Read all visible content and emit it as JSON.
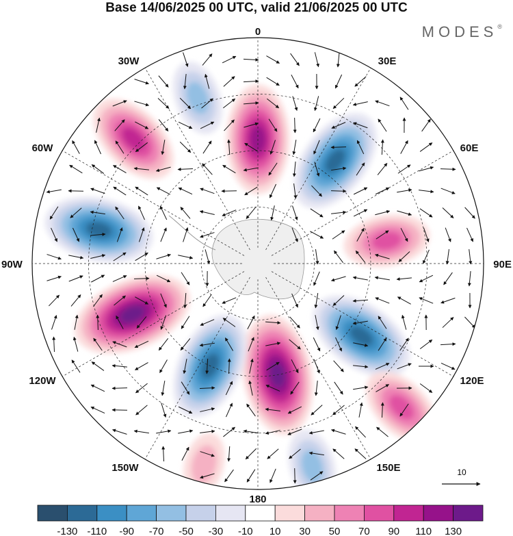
{
  "title": "Base 14/06/2025 00 UTC, valid 21/06/2025 00 UTC",
  "brand": "MODES",
  "brand_mark": "®",
  "map": {
    "projection": "south-polar-stereographic",
    "longitude_labels": {
      "top": "0",
      "bottom": "180",
      "left": "90W",
      "right": "90E",
      "upper_left_30": "30W",
      "upper_left_60": "60W",
      "upper_right_30": "30E",
      "upper_right_60": "60E",
      "lower_left_120": "120W",
      "lower_left_150": "150W",
      "lower_right_120": "120E",
      "lower_right_150": "150E"
    },
    "vector_reference": "10"
  },
  "colorbar": {
    "labels": [
      "-130",
      "-110",
      "-90",
      "-70",
      "-50",
      "-30",
      "-10",
      "10",
      "30",
      "50",
      "70",
      "90",
      "110",
      "130"
    ],
    "colors": [
      "#2a4f6e",
      "#2c6a96",
      "#3b8fc4",
      "#5fa6d6",
      "#93bfe3",
      "#c6d1ea",
      "#e6e6f3",
      "#ffffff",
      "#fbdcdc",
      "#f5b1c3",
      "#ee82b4",
      "#e051a2",
      "#c12592",
      "#96128a",
      "#6d1a8a"
    ]
  },
  "anomaly_cells": [
    {
      "lon": 0,
      "lat_frac": 0.55,
      "sign": 1,
      "magnitude": 110
    },
    {
      "lon": 37,
      "lat_frac": 0.57,
      "sign": -1,
      "magnitude": 110
    },
    {
      "lon": 80,
      "lat_frac": 0.58,
      "sign": 1,
      "magnitude": 70
    },
    {
      "lon": 125,
      "lat_frac": 0.56,
      "sign": -1,
      "magnitude": 110
    },
    {
      "lon": 170,
      "lat_frac": 0.5,
      "sign": 1,
      "magnitude": 130
    },
    {
      "lon": -155,
      "lat_frac": 0.5,
      "sign": -1,
      "magnitude": 110
    },
    {
      "lon": -112,
      "lat_frac": 0.6,
      "sign": 1,
      "magnitude": 130
    },
    {
      "lon": -78,
      "lat_frac": 0.72,
      "sign": -1,
      "magnitude": 110
    },
    {
      "lon": -45,
      "lat_frac": 0.78,
      "sign": 1,
      "magnitude": 90
    },
    {
      "lon": -20,
      "lat_frac": 0.78,
      "sign": -1,
      "magnitude": 50
    },
    {
      "lon": 135,
      "lat_frac": 0.9,
      "sign": 1,
      "magnitude": 70
    },
    {
      "lon": 165,
      "lat_frac": 0.93,
      "sign": -1,
      "magnitude": 50
    },
    {
      "lon": -165,
      "lat_frac": 0.92,
      "sign": 1,
      "magnitude": 30
    }
  ]
}
